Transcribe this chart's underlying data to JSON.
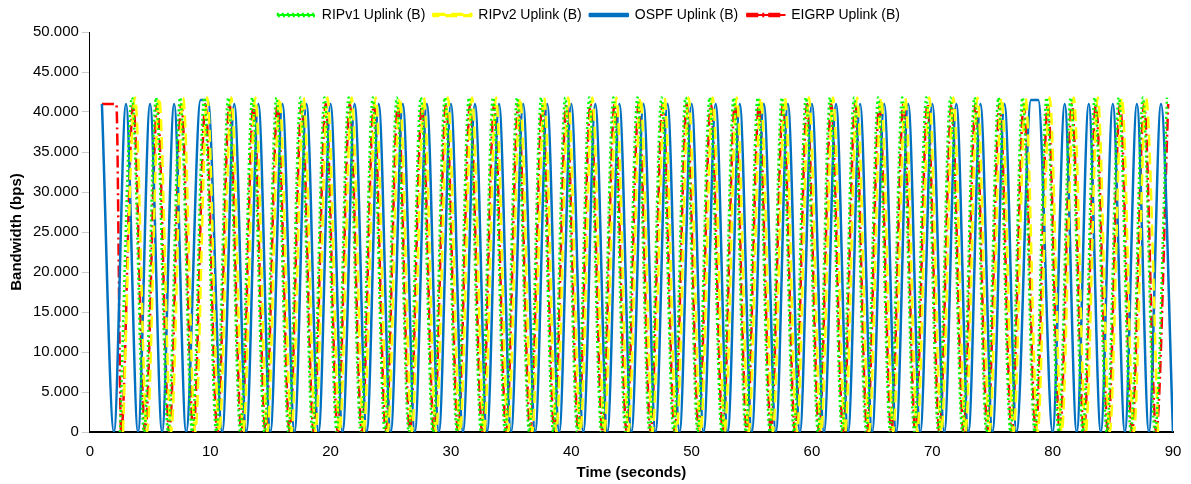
{
  "chart_data": {
    "type": "line",
    "xlabel": "Time (seconds)",
    "ylabel": "Bandwidth (bps)",
    "xlim": [
      0,
      90
    ],
    "xticks": [
      0,
      10,
      20,
      30,
      40,
      50,
      60,
      70,
      80,
      90
    ],
    "ylim": [
      0,
      50000
    ],
    "yticks": [
      {
        "value": 0,
        "label": "0"
      },
      {
        "value": 5000,
        "label": "5.000"
      },
      {
        "value": 10000,
        "label": "10.000"
      },
      {
        "value": 15000,
        "label": "15.000"
      },
      {
        "value": 20000,
        "label": "20.000"
      },
      {
        "value": 25000,
        "label": "25.000"
      },
      {
        "value": 30000,
        "label": "30.000"
      },
      {
        "value": 35000,
        "label": "35.000"
      },
      {
        "value": 40000,
        "label": "40.000"
      },
      {
        "value": 45000,
        "label": "45.000"
      },
      {
        "value": 50000,
        "label": "50.000"
      }
    ],
    "grid": false,
    "legend": "top",
    "marker": "none",
    "series": [
      {
        "name": "RIPv1 Uplink (B)",
        "color": "#00ff00",
        "line_style": "dotted",
        "x": [
          2.5,
          3.5,
          4.5,
          5.5,
          6.5,
          7.5,
          8.5,
          9.5,
          10.5,
          11.5,
          12.5,
          13.5,
          14.5,
          15.5,
          16.5,
          17.5,
          18.5,
          19.5,
          20.5,
          21.5,
          22.5,
          23.5,
          24.5,
          25.5,
          26.5,
          27.5,
          28.5,
          29.5,
          30.5,
          31.5,
          32.5,
          33.5,
          34.5,
          35.5,
          36.5,
          37.5,
          38.5,
          39.5,
          40.5,
          41.5,
          42.5,
          43.5,
          44.5,
          45.5,
          46.5,
          47.5,
          48.5,
          49.5,
          50.5,
          51.5,
          52.5,
          53.5,
          54.5,
          55.5,
          56.5,
          57.5,
          58.5,
          59.5,
          60.5,
          61.5,
          62.5,
          63.5,
          64.5,
          65.5,
          66.5,
          67.5,
          68.5,
          69.5,
          70.5,
          71.5,
          72.5,
          73.5,
          74.5,
          75.5,
          76.5,
          77.5,
          78.5,
          79.5,
          80.5,
          81.5,
          82.5,
          83.5,
          84.5,
          85.5,
          86.5,
          87.5,
          88.5,
          89.5
        ],
        "values": [
          0,
          41800,
          0,
          41800,
          0,
          41800,
          0,
          41800,
          0,
          41800,
          0,
          41800,
          0,
          41800,
          0,
          41800,
          0,
          41800,
          0,
          41800,
          0,
          41800,
          0,
          41800,
          0,
          41800,
          0,
          41800,
          0,
          41800,
          0,
          41800,
          0,
          41800,
          0,
          41800,
          0,
          41800,
          0,
          41800,
          0,
          41800,
          0,
          41800,
          0,
          41800,
          0,
          41800,
          0,
          41800,
          0,
          41800,
          0,
          41800,
          0,
          41800,
          0,
          41800,
          0,
          41800,
          0,
          41800,
          0,
          41800,
          0,
          41800,
          0,
          41800,
          0,
          41800,
          0,
          41800,
          0,
          41800,
          0,
          41800,
          0,
          41800,
          0,
          41800,
          0,
          41800,
          0,
          41800,
          0,
          41800,
          0,
          41800
        ]
      },
      {
        "name": "RIPv2 Uplink (B)",
        "color": "#ffff00",
        "line_style": "dashed",
        "x": [
          2.75,
          3.75,
          4.75,
          5.75,
          6.75,
          7.75,
          8.75,
          9.75,
          10.75,
          11.75,
          12.75,
          13.75,
          14.75,
          15.75,
          16.75,
          17.75,
          18.75,
          19.75,
          20.75,
          21.75,
          22.75,
          23.75,
          24.75,
          25.75,
          26.75,
          27.75,
          28.75,
          29.75,
          30.75,
          31.75,
          32.75,
          33.75,
          34.75,
          35.75,
          36.75,
          37.75,
          38.75,
          39.75,
          40.75,
          41.75,
          42.75,
          43.75,
          44.75,
          45.75,
          46.75,
          47.75,
          48.75,
          49.75,
          50.75,
          51.75,
          52.75,
          53.75,
          54.75,
          55.75,
          56.75,
          57.75,
          58.75,
          59.75,
          60.75,
          61.75,
          62.75,
          63.75,
          64.75,
          65.75,
          66.75,
          67.75,
          68.75,
          69.75,
          70.75,
          71.75,
          72.75,
          73.75,
          74.75,
          75.75,
          76.75,
          77.75,
          78.75,
          79.75,
          80.75,
          81.75,
          82.75,
          83.75,
          84.75,
          85.75,
          86.75,
          87.75,
          88.75
        ],
        "values": [
          0,
          41800,
          0,
          41800,
          0,
          41800,
          0,
          41800,
          0,
          41800,
          0,
          41800,
          0,
          41800,
          0,
          41800,
          0,
          41800,
          0,
          41800,
          0,
          41800,
          0,
          41800,
          0,
          41800,
          0,
          41800,
          0,
          41800,
          0,
          41800,
          0,
          41800,
          0,
          41800,
          0,
          41800,
          0,
          41800,
          0,
          41800,
          0,
          41800,
          0,
          41800,
          0,
          41800,
          0,
          41800,
          0,
          41800,
          0,
          41800,
          0,
          41800,
          0,
          41800,
          0,
          41800,
          0,
          41800,
          0,
          41800,
          0,
          41800,
          0,
          41800,
          0,
          41800,
          0,
          41800,
          0,
          41800,
          0,
          41800,
          0,
          41800,
          0,
          41800,
          0,
          41800,
          0,
          41800,
          0,
          41800,
          0
        ]
      },
      {
        "name": "OSPF Uplink (B)",
        "color": "#0070c0",
        "line_style": "solid",
        "x": [
          1,
          2,
          3,
          4,
          5,
          6,
          7,
          8,
          9.2,
          9.8,
          11,
          12,
          13,
          14,
          15,
          16,
          17,
          18,
          19,
          20,
          21,
          22,
          23,
          24,
          25,
          26,
          27,
          28,
          29,
          30,
          31,
          32,
          33,
          34,
          35,
          36,
          37,
          38,
          39,
          40,
          41,
          42,
          43,
          44,
          45,
          46,
          47,
          48,
          49,
          50,
          51,
          52,
          53,
          54,
          55,
          56,
          57,
          58,
          59,
          60,
          61,
          62,
          63,
          64,
          65,
          66,
          67,
          68,
          69,
          70,
          71,
          72,
          73,
          74,
          75,
          76,
          77,
          78.2,
          78.8,
          80,
          81,
          82,
          83,
          84,
          85,
          86,
          87,
          88,
          89,
          90
        ],
        "values": [
          41000,
          0,
          41000,
          0,
          41000,
          0,
          41000,
          0,
          41500,
          41500,
          0,
          41000,
          0,
          41000,
          0,
          41000,
          0,
          41000,
          0,
          41000,
          0,
          41000,
          0,
          41000,
          0,
          41000,
          0,
          41000,
          0,
          41000,
          0,
          41000,
          0,
          41000,
          0,
          41000,
          0,
          41000,
          0,
          41000,
          0,
          41000,
          0,
          41000,
          0,
          41000,
          0,
          41000,
          0,
          41000,
          0,
          41000,
          0,
          41000,
          0,
          41000,
          0,
          41000,
          0,
          41000,
          0,
          41000,
          0,
          41000,
          0,
          41000,
          0,
          41000,
          0,
          41000,
          0,
          41000,
          0,
          41000,
          0,
          41000,
          0,
          41500,
          41500,
          0,
          41000,
          0,
          41000,
          0,
          41000,
          0,
          41000,
          0,
          41000,
          0
        ]
      },
      {
        "name": "EIGRP Uplink (B)",
        "color": "#ff0000",
        "line_style": "dashdot",
        "x": [
          1,
          2.2,
          2.6,
          3.6,
          4.6,
          5.6,
          6.6,
          7.6,
          8.6,
          9.6,
          10.6,
          11.6,
          12.6,
          13.6,
          14.6,
          15.6,
          16.6,
          17.6,
          18.6,
          19.6,
          20.6,
          21.6,
          22.6,
          23.6,
          24.6,
          25.6,
          26.6,
          27.6,
          28.6,
          29.6,
          30.6,
          31.6,
          32.6,
          33.6,
          34.6,
          35.6,
          36.6,
          37.6,
          38.6,
          39.6,
          40.6,
          41.6,
          42.6,
          43.6,
          44.6,
          45.6,
          46.6,
          47.6,
          48.6,
          49.6,
          50.6,
          51.6,
          52.6,
          53.6,
          54.6,
          55.6,
          56.6,
          57.6,
          58.6,
          59.6,
          60.6,
          61.6,
          62.6,
          63.6,
          64.6,
          65.6,
          66.6,
          67.6,
          68.6,
          69.6,
          70.6,
          71.6,
          72.6,
          73.6,
          74.6,
          75.6,
          76.6,
          77.6,
          78.6,
          79.6,
          80.6,
          81.6,
          82.6,
          83.6,
          84.6,
          85.6,
          86.6,
          87.6,
          88.6,
          89.6
        ],
        "values": [
          41000,
          41000,
          0,
          41000,
          0,
          41000,
          0,
          41000,
          0,
          41000,
          0,
          41000,
          0,
          41000,
          0,
          41000,
          0,
          41000,
          0,
          41000,
          0,
          41000,
          0,
          41000,
          0,
          41000,
          0,
          41000,
          0,
          41000,
          0,
          41000,
          0,
          41000,
          0,
          41000,
          0,
          41000,
          0,
          41000,
          0,
          41000,
          0,
          41000,
          0,
          41000,
          0,
          41000,
          0,
          41000,
          0,
          41000,
          0,
          41000,
          0,
          41000,
          0,
          41000,
          0,
          41000,
          0,
          41000,
          0,
          41000,
          0,
          41000,
          0,
          41000,
          0,
          41000,
          0,
          41000,
          0,
          41000,
          0,
          41000,
          0,
          41000,
          0,
          41000,
          0,
          41000,
          0,
          41000,
          0,
          41000,
          0,
          41000,
          0,
          41000
        ]
      }
    ]
  }
}
